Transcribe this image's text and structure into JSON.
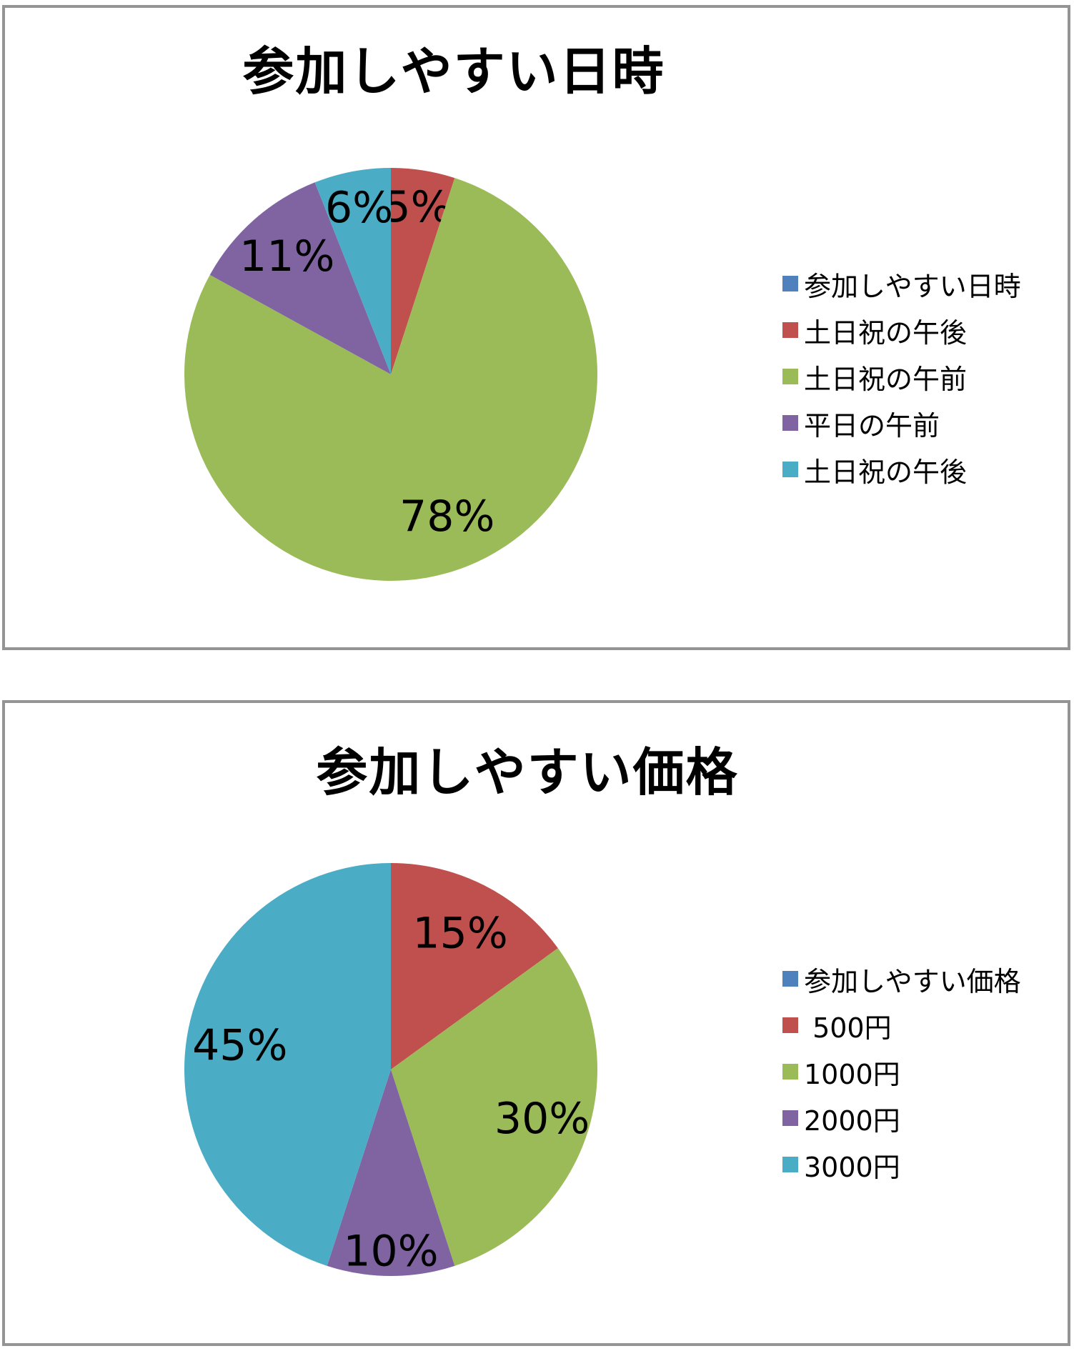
{
  "palette": {
    "blue": "#4F81BD",
    "red": "#C0504D",
    "green": "#9BBB59",
    "purple": "#8064A2",
    "cyan": "#4BACC6",
    "panel_border": "#949494",
    "text": "#000000"
  },
  "chart_data": [
    {
      "type": "pie",
      "title": "参加しやすい日時",
      "legend_position": "right",
      "start_angle_deg": 0,
      "direction": "clockwise",
      "legend": [
        {
          "label": "参加しやすい日時",
          "color": "#4F81BD"
        },
        {
          "label": "土日祝の午後",
          "color": "#C0504D"
        },
        {
          "label": "土日祝の午前",
          "color": "#9BBB59"
        },
        {
          "label": "平日の午前",
          "color": "#8064A2"
        },
        {
          "label": "土日祝の午後",
          "color": "#4BACC6"
        }
      ],
      "slices": [
        {
          "label": "土日祝の午後",
          "value": 5,
          "percent_label": "5%",
          "color": "#C0504D",
          "label_r": 0.82
        },
        {
          "label": "土日祝の午前",
          "value": 78,
          "percent_label": "78%",
          "color": "#9BBB59",
          "label_r": 0.74
        },
        {
          "label": "平日の午前",
          "value": 11,
          "percent_label": "11%",
          "color": "#8064A2",
          "label_r": 0.76
        },
        {
          "label": "土日祝の午後",
          "value": 6,
          "percent_label": "6%",
          "color": "#4BACC6",
          "label_r": 0.82
        }
      ]
    },
    {
      "type": "pie",
      "title": "参加しやすい価格",
      "legend_position": "right",
      "start_angle_deg": 0,
      "direction": "clockwise",
      "legend": [
        {
          "label": "参加しやすい価格",
          "color": "#4F81BD"
        },
        {
          "label": " 500円",
          "color": "#C0504D"
        },
        {
          "label": "1000円",
          "color": "#9BBB59"
        },
        {
          "label": "2000円",
          "color": "#8064A2"
        },
        {
          "label": "3000円",
          "color": "#4BACC6"
        }
      ],
      "slices": [
        {
          "label": " 500円",
          "value": 15,
          "percent_label": "15%",
          "color": "#C0504D",
          "label_r": 0.74
        },
        {
          "label": "1000円",
          "value": 30,
          "percent_label": "30%",
          "color": "#9BBB59",
          "label_r": 0.77
        },
        {
          "label": "2000円",
          "value": 10,
          "percent_label": "10%",
          "color": "#8064A2",
          "label_r": 0.88
        },
        {
          "label": "3000円",
          "value": 45,
          "percent_label": "45%",
          "color": "#4BACC6",
          "label_r": 0.74
        }
      ]
    }
  ]
}
